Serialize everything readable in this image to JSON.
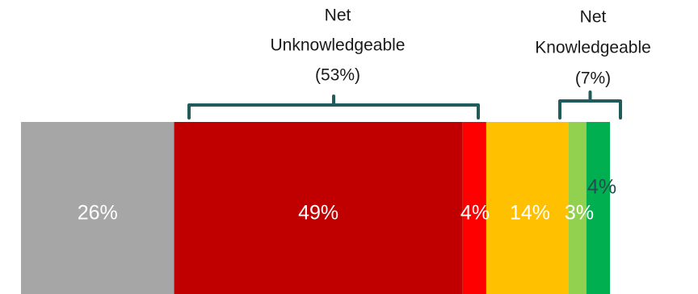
{
  "chart_data": {
    "type": "bar",
    "orientation": "horizontal-stacked",
    "xlim": [
      0,
      100
    ],
    "segments": [
      {
        "label": "26%",
        "value": 26,
        "color": "#a6a6a6",
        "text_color": "#ffffff"
      },
      {
        "label": "49%",
        "value": 49,
        "color": "#c00000",
        "text_color": "#ffffff"
      },
      {
        "label": "4%",
        "value": 4,
        "color": "#ff0000",
        "text_color": "#ffffff"
      },
      {
        "label": "14%",
        "value": 14,
        "color": "#ffc000",
        "text_color": "#ffffff"
      },
      {
        "label": "3%",
        "value": 3,
        "color": "#92d050",
        "text_color": "#ffffff"
      },
      {
        "label": "4%",
        "value": 4,
        "color": "#00b050",
        "text_color": "#1f4e4e"
      }
    ],
    "nets": [
      {
        "lines": [
          "Net",
          "Unknowledgeable",
          "(53%)"
        ],
        "value": 53,
        "from_segment": 1,
        "to_segment": 2
      },
      {
        "lines": [
          "Net",
          "Knowledgeable",
          "(7%)"
        ],
        "value": 7,
        "from_segment": 4,
        "to_segment": 5
      }
    ],
    "bracket_color": "#215c5c"
  }
}
